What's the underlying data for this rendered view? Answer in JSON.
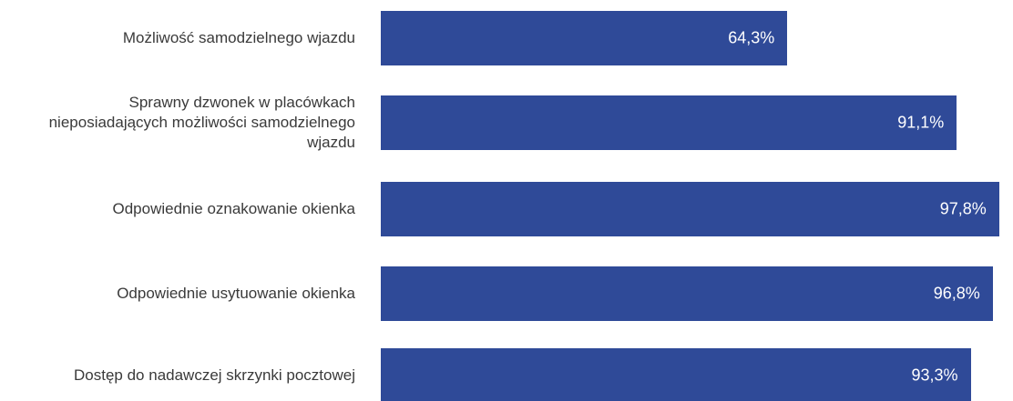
{
  "chart_data": {
    "type": "bar",
    "orientation": "horizontal",
    "categories": [
      "Możliwość samodzielnego wjazdu",
      "Sprawny dzwonek w placówkach nieposiadających możliwości samodzielnego wjazdu",
      "Odpowiednie oznakowanie okienka",
      "Odpowiednie usytuowanie okienka",
      "Dostęp do nadawczej skrzynki pocztowej"
    ],
    "values": [
      64.3,
      91.1,
      97.8,
      96.8,
      93.3
    ],
    "value_labels": [
      "64,3%",
      "91,1%",
      "97,8%",
      "96,8%",
      "93,3%"
    ],
    "color": "#2f4a98",
    "xlim": [
      0,
      100
    ]
  }
}
